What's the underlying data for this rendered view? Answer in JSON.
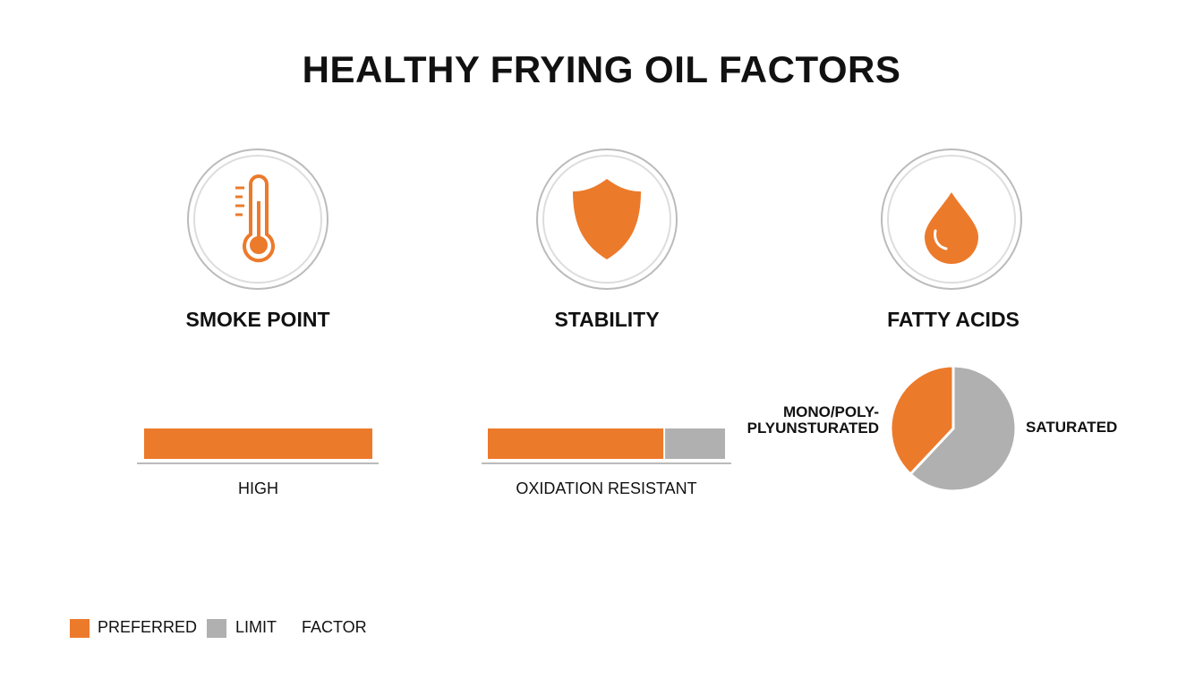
{
  "title": "HEALTHY FRYING OIL FACTORS",
  "factors": [
    {
      "label": "SMOKE POINT",
      "chart": {
        "type": "bar",
        "xlim": [
          0,
          100
        ],
        "values": [
          100
        ],
        "colors": [
          "#ec7a2b"
        ],
        "caption": "HIGH"
      }
    },
    {
      "label": "STABILITY",
      "chart": {
        "type": "bar",
        "xlim": [
          0,
          100
        ],
        "values": [
          74,
          26
        ],
        "colors": [
          "#ec7a2b",
          "#b0b0b0"
        ],
        "caption": "OXIDATION RESISTANT"
      }
    },
    {
      "label": "FATTY ACIDS",
      "chart": {
        "type": "pie",
        "categories": [
          "MONO/POLY-\nPLYUNSTURATED",
          "SATURATED"
        ],
        "values": [
          38,
          62
        ],
        "colors": [
          "#ec7a2b",
          "#b0b0b0"
        ]
      }
    }
  ],
  "legend": [
    {
      "label": "PREFERRED",
      "color": "#ec7a2b"
    },
    {
      "label": "LIMIT",
      "color": "#b0b0b0"
    },
    {
      "label": "FACTOR"
    }
  ]
}
